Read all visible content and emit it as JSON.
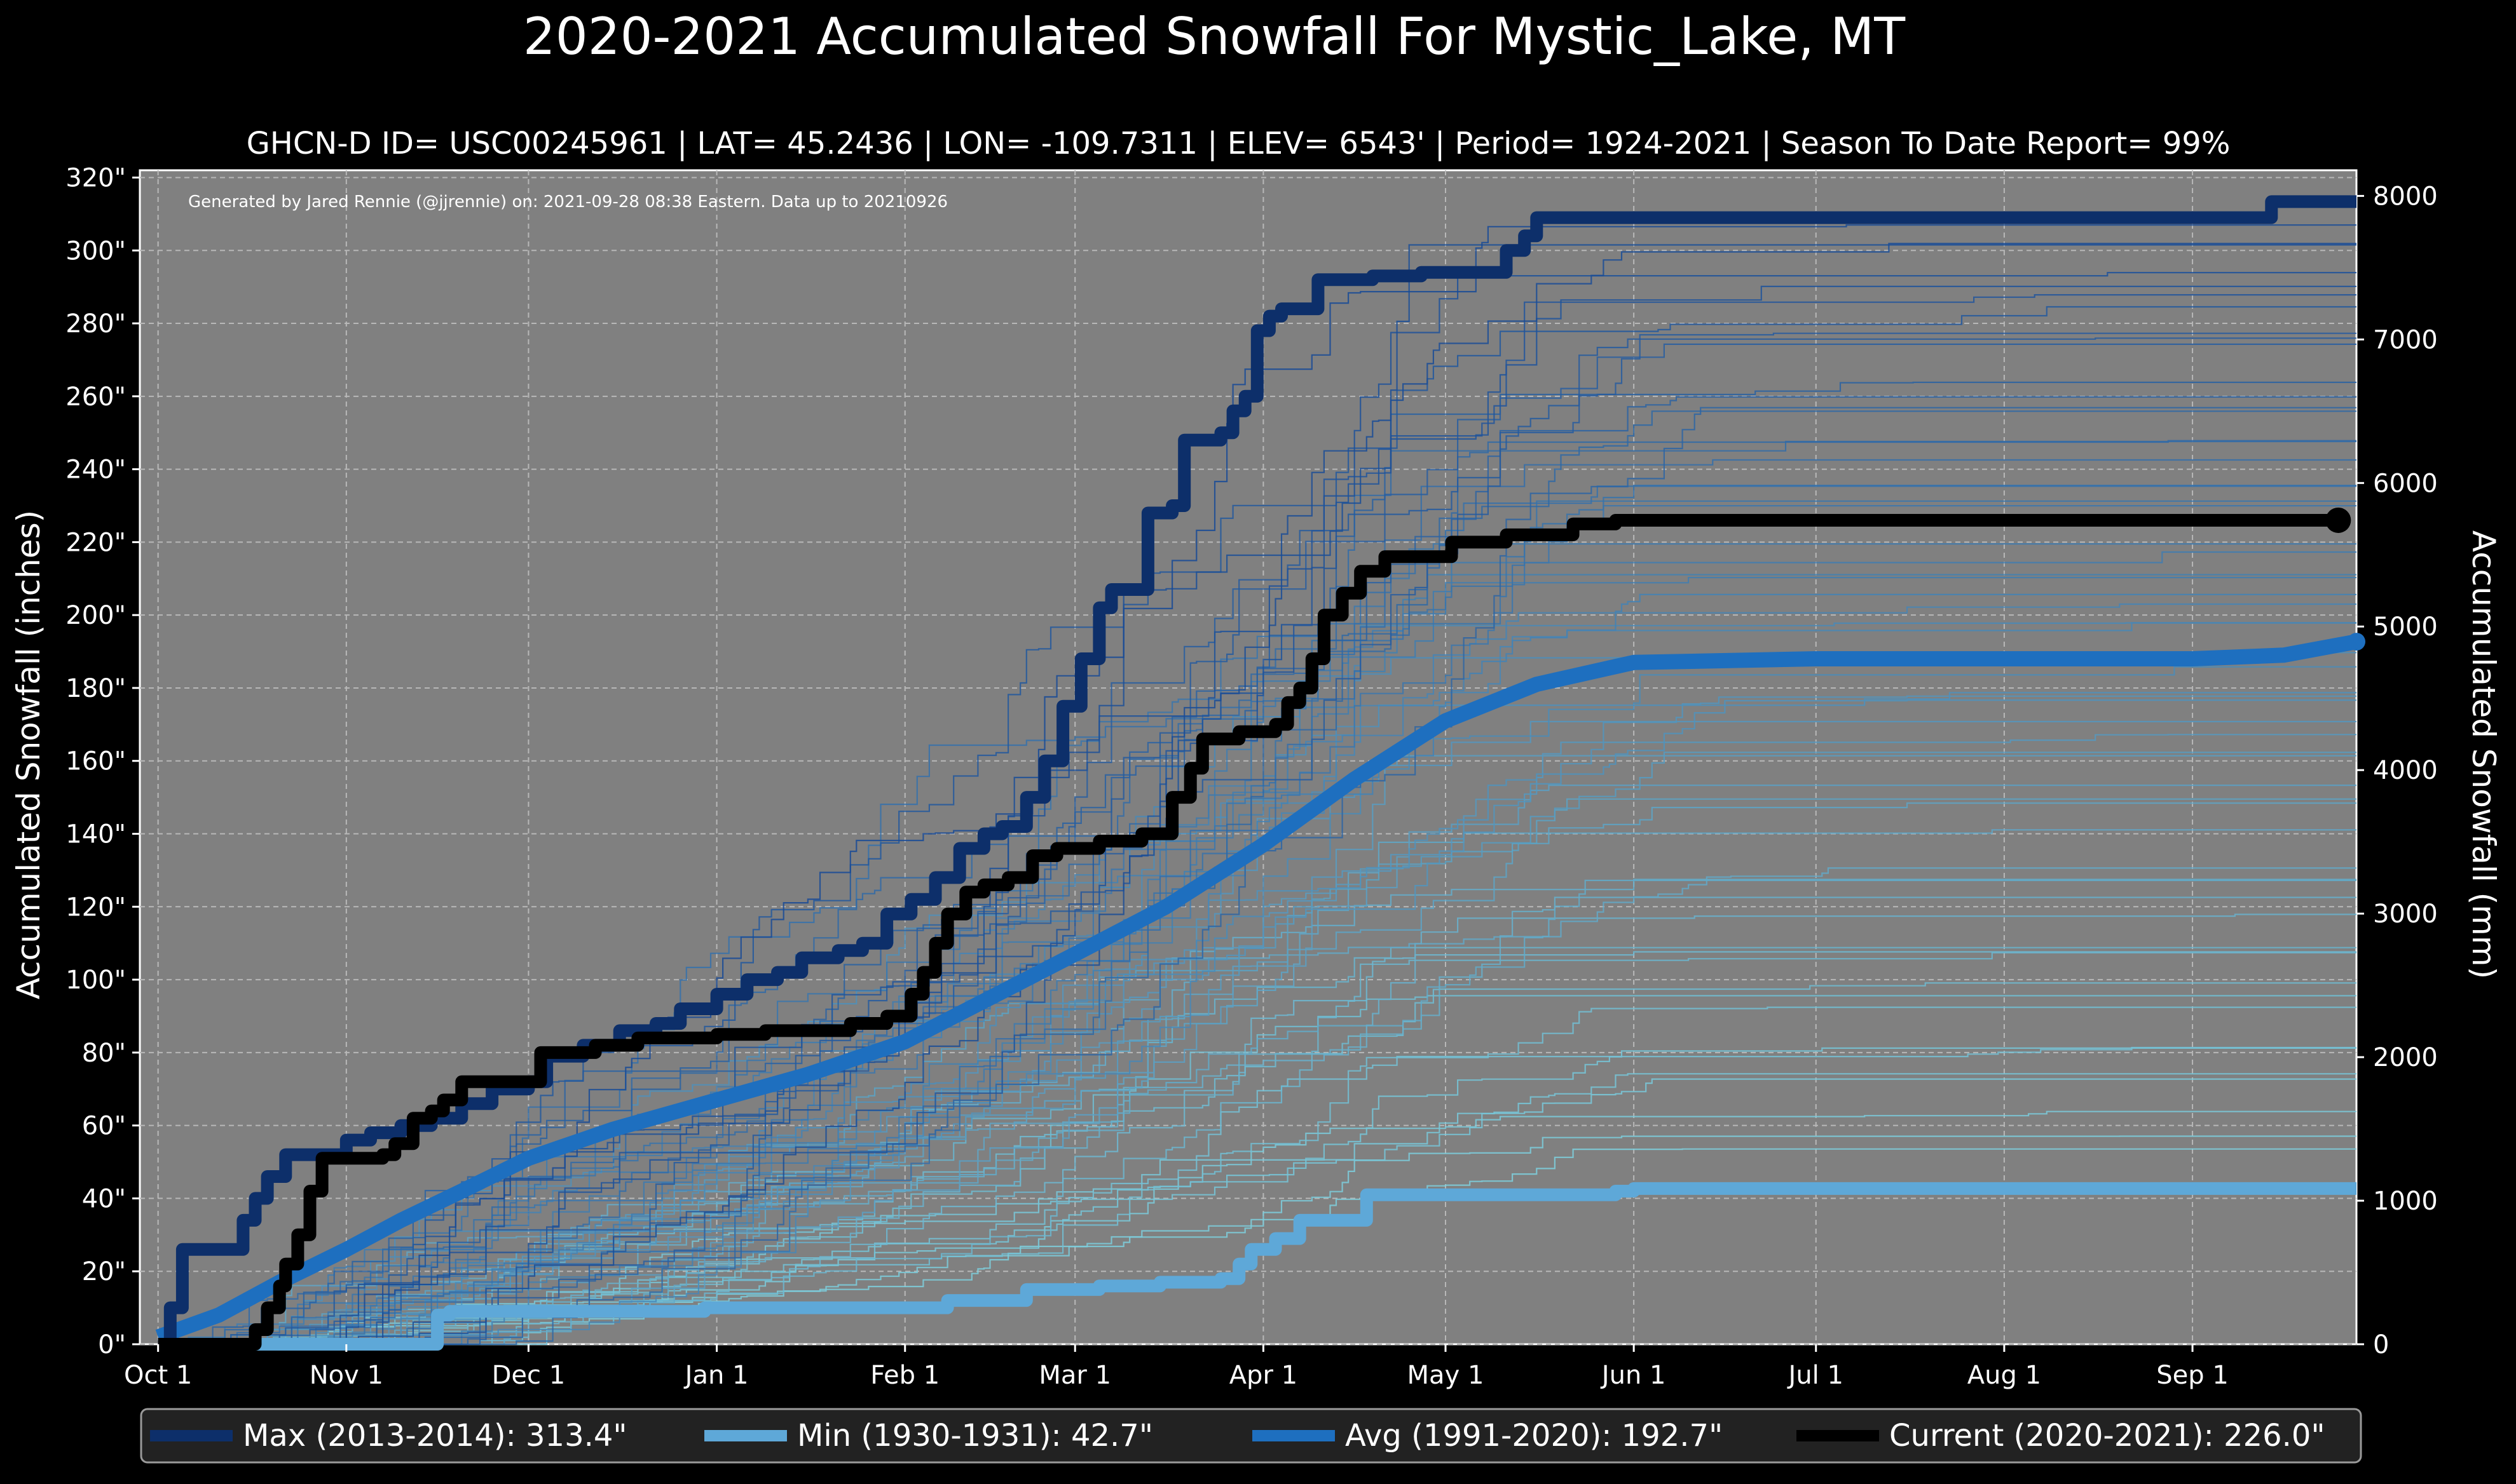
{
  "chart_data": {
    "type": "line",
    "title": "2020-2021 Accumulated Snowfall For Mystic_Lake, MT",
    "subtitle": "GHCN-D ID= USC00245961 | LAT= 45.2436 | LON= -109.7311 | ELEV= 6543' | Period= 1924-2021 | Season To Date Report= 99%",
    "credit": "Generated by Jared Rennie (@jjrennie) on: 2021-09-28 08:38 Eastern. Data up to 20210926",
    "ylabel": "Accumulated Snowfall (inches)",
    "ylabel_right": "Accumulated Snowfall (mm)",
    "xlim_days": [
      -3,
      362
    ],
    "ylim": [
      0,
      322
    ],
    "ylim_right_mm": [
      0,
      8178.8
    ],
    "grid": true,
    "x_ticks": [
      {
        "label": "Oct 1",
        "day": 0
      },
      {
        "label": "Nov 1",
        "day": 31
      },
      {
        "label": "Dec 1",
        "day": 61
      },
      {
        "label": "Jan 1",
        "day": 92
      },
      {
        "label": "Feb 1",
        "day": 123
      },
      {
        "label": "Mar 1",
        "day": 151
      },
      {
        "label": "Apr 1",
        "day": 182
      },
      {
        "label": "May 1",
        "day": 212
      },
      {
        "label": "Jun 1",
        "day": 243
      },
      {
        "label": "Jul 1",
        "day": 273
      },
      {
        "label": "Aug 1",
        "day": 304
      },
      {
        "label": "Sep 1",
        "day": 335
      }
    ],
    "y_ticks": [
      {
        "label": "0\"",
        "value": 0
      },
      {
        "label": "20\"",
        "value": 20
      },
      {
        "label": "40\"",
        "value": 40
      },
      {
        "label": "60\"",
        "value": 60
      },
      {
        "label": "80\"",
        "value": 80
      },
      {
        "label": "100\"",
        "value": 100
      },
      {
        "label": "120\"",
        "value": 120
      },
      {
        "label": "140\"",
        "value": 140
      },
      {
        "label": "160\"",
        "value": 160
      },
      {
        "label": "180\"",
        "value": 180
      },
      {
        "label": "200\"",
        "value": 200
      },
      {
        "label": "220\"",
        "value": 220
      },
      {
        "label": "240\"",
        "value": 240
      },
      {
        "label": "260\"",
        "value": 260
      },
      {
        "label": "280\"",
        "value": 280
      },
      {
        "label": "300\"",
        "value": 300
      },
      {
        "label": "320\"",
        "value": 320
      }
    ],
    "y_ticks_right": [
      {
        "label": "0",
        "mm": 0
      },
      {
        "label": "1000",
        "mm": 1000
      },
      {
        "label": "2000",
        "mm": 2000
      },
      {
        "label": "3000",
        "mm": 3000
      },
      {
        "label": "4000",
        "mm": 4000
      },
      {
        "label": "5000",
        "mm": 5000
      },
      {
        "label": "6000",
        "mm": 6000
      },
      {
        "label": "7000",
        "mm": 7000
      },
      {
        "label": "8000",
        "mm": 8000
      }
    ],
    "background_seasons": {
      "count": 60,
      "description": "individual historical seasons 1924-2021 drawn as thin lines shaded from dark blue (snowiest) to pale cyan (least snowy)",
      "final_totals_range": [
        52,
        306
      ]
    },
    "series": [
      {
        "name": "Max (2013-2014)",
        "legend": "Max (2013-2014):  313.4\"",
        "color": "#0d2f6a",
        "style": "step",
        "points": [
          [
            0,
            0
          ],
          [
            2,
            10
          ],
          [
            4,
            26
          ],
          [
            12,
            26
          ],
          [
            14,
            34
          ],
          [
            16,
            40
          ],
          [
            18,
            46
          ],
          [
            21,
            52
          ],
          [
            28,
            52
          ],
          [
            31,
            56
          ],
          [
            35,
            58
          ],
          [
            40,
            60
          ],
          [
            45,
            62
          ],
          [
            50,
            66
          ],
          [
            55,
            70
          ],
          [
            61,
            72
          ],
          [
            64,
            79
          ],
          [
            70,
            82
          ],
          [
            76,
            86
          ],
          [
            82,
            88
          ],
          [
            86,
            92
          ],
          [
            92,
            96
          ],
          [
            97,
            100
          ],
          [
            102,
            102
          ],
          [
            106,
            106
          ],
          [
            112,
            108
          ],
          [
            116,
            110
          ],
          [
            120,
            118
          ],
          [
            124,
            122
          ],
          [
            128,
            128
          ],
          [
            132,
            136
          ],
          [
            136,
            140
          ],
          [
            139,
            142
          ],
          [
            143,
            150
          ],
          [
            146,
            160
          ],
          [
            149,
            175
          ],
          [
            152,
            188
          ],
          [
            155,
            202
          ],
          [
            157,
            207
          ],
          [
            162,
            207
          ],
          [
            163,
            228
          ],
          [
            167,
            230
          ],
          [
            169,
            248
          ],
          [
            172,
            248
          ],
          [
            175,
            250
          ],
          [
            177,
            256
          ],
          [
            179,
            260
          ],
          [
            181,
            278
          ],
          [
            183,
            282
          ],
          [
            185,
            284
          ],
          [
            189,
            284
          ],
          [
            191,
            292
          ],
          [
            200,
            293
          ],
          [
            208,
            294
          ],
          [
            220,
            294
          ],
          [
            222,
            300
          ],
          [
            225,
            304
          ],
          [
            227,
            309
          ],
          [
            344,
            309
          ],
          [
            348,
            313.4
          ],
          [
            362,
            313.4
          ]
        ]
      },
      {
        "name": "Min (1930-1931)",
        "legend": "Min (1930-1931):   42.7\"",
        "color": "#5ea8d8",
        "style": "step",
        "points": [
          [
            0,
            0
          ],
          [
            44,
            0
          ],
          [
            46,
            8
          ],
          [
            48,
            9
          ],
          [
            90,
            10
          ],
          [
            110,
            10
          ],
          [
            130,
            12
          ],
          [
            143,
            15
          ],
          [
            155,
            16
          ],
          [
            165,
            17
          ],
          [
            175,
            18
          ],
          [
            178,
            22
          ],
          [
            180,
            26
          ],
          [
            184,
            29
          ],
          [
            188,
            34
          ],
          [
            196,
            34
          ],
          [
            199,
            41
          ],
          [
            240,
            42
          ],
          [
            243,
            42.7
          ],
          [
            362,
            42.7
          ]
        ]
      },
      {
        "name": "Avg (1991-2020)",
        "legend": "Avg (1991-2020):  192.7\"",
        "color": "#1e6fbf",
        "style": "smooth",
        "points": [
          [
            0,
            2
          ],
          [
            10,
            8
          ],
          [
            20,
            17
          ],
          [
            31,
            26
          ],
          [
            40,
            34
          ],
          [
            50,
            42
          ],
          [
            61,
            51
          ],
          [
            75,
            59
          ],
          [
            92,
            67
          ],
          [
            107,
            74
          ],
          [
            123,
            83
          ],
          [
            137,
            95
          ],
          [
            151,
            107
          ],
          [
            166,
            120
          ],
          [
            182,
            137
          ],
          [
            197,
            155
          ],
          [
            212,
            171
          ],
          [
            227,
            181
          ],
          [
            243,
            187
          ],
          [
            273,
            188
          ],
          [
            304,
            188
          ],
          [
            335,
            188
          ],
          [
            350,
            189
          ],
          [
            362,
            192.7
          ]
        ]
      },
      {
        "name": "Current (2020-2021)",
        "legend": "Current (2020-2021):  226.0\"",
        "color": "#000000",
        "style": "step",
        "points": [
          [
            0,
            0
          ],
          [
            14,
            0
          ],
          [
            16,
            4
          ],
          [
            18,
            10
          ],
          [
            20,
            16
          ],
          [
            21,
            22
          ],
          [
            23,
            30
          ],
          [
            25,
            42
          ],
          [
            27,
            51
          ],
          [
            37,
            52
          ],
          [
            39,
            55
          ],
          [
            42,
            62
          ],
          [
            45,
            64
          ],
          [
            47,
            67
          ],
          [
            50,
            72
          ],
          [
            60,
            72
          ],
          [
            63,
            80
          ],
          [
            72,
            82
          ],
          [
            76,
            82
          ],
          [
            79,
            84
          ],
          [
            92,
            85
          ],
          [
            100,
            86
          ],
          [
            110,
            86
          ],
          [
            114,
            88
          ],
          [
            120,
            90
          ],
          [
            124,
            96
          ],
          [
            126,
            102
          ],
          [
            128,
            110
          ],
          [
            130,
            118
          ],
          [
            133,
            124
          ],
          [
            136,
            126
          ],
          [
            140,
            128
          ],
          [
            144,
            134
          ],
          [
            148,
            136
          ],
          [
            155,
            138
          ],
          [
            162,
            140
          ],
          [
            166,
            140
          ],
          [
            167,
            150
          ],
          [
            170,
            158
          ],
          [
            172,
            166
          ],
          [
            178,
            168
          ],
          [
            184,
            170
          ],
          [
            186,
            176
          ],
          [
            188,
            180
          ],
          [
            190,
            188
          ],
          [
            192,
            200
          ],
          [
            195,
            206
          ],
          [
            198,
            212
          ],
          [
            202,
            216
          ],
          [
            207,
            216
          ],
          [
            213,
            220
          ],
          [
            222,
            222
          ],
          [
            233,
            225
          ],
          [
            240,
            226
          ],
          [
            359,
            226
          ]
        ]
      }
    ]
  }
}
